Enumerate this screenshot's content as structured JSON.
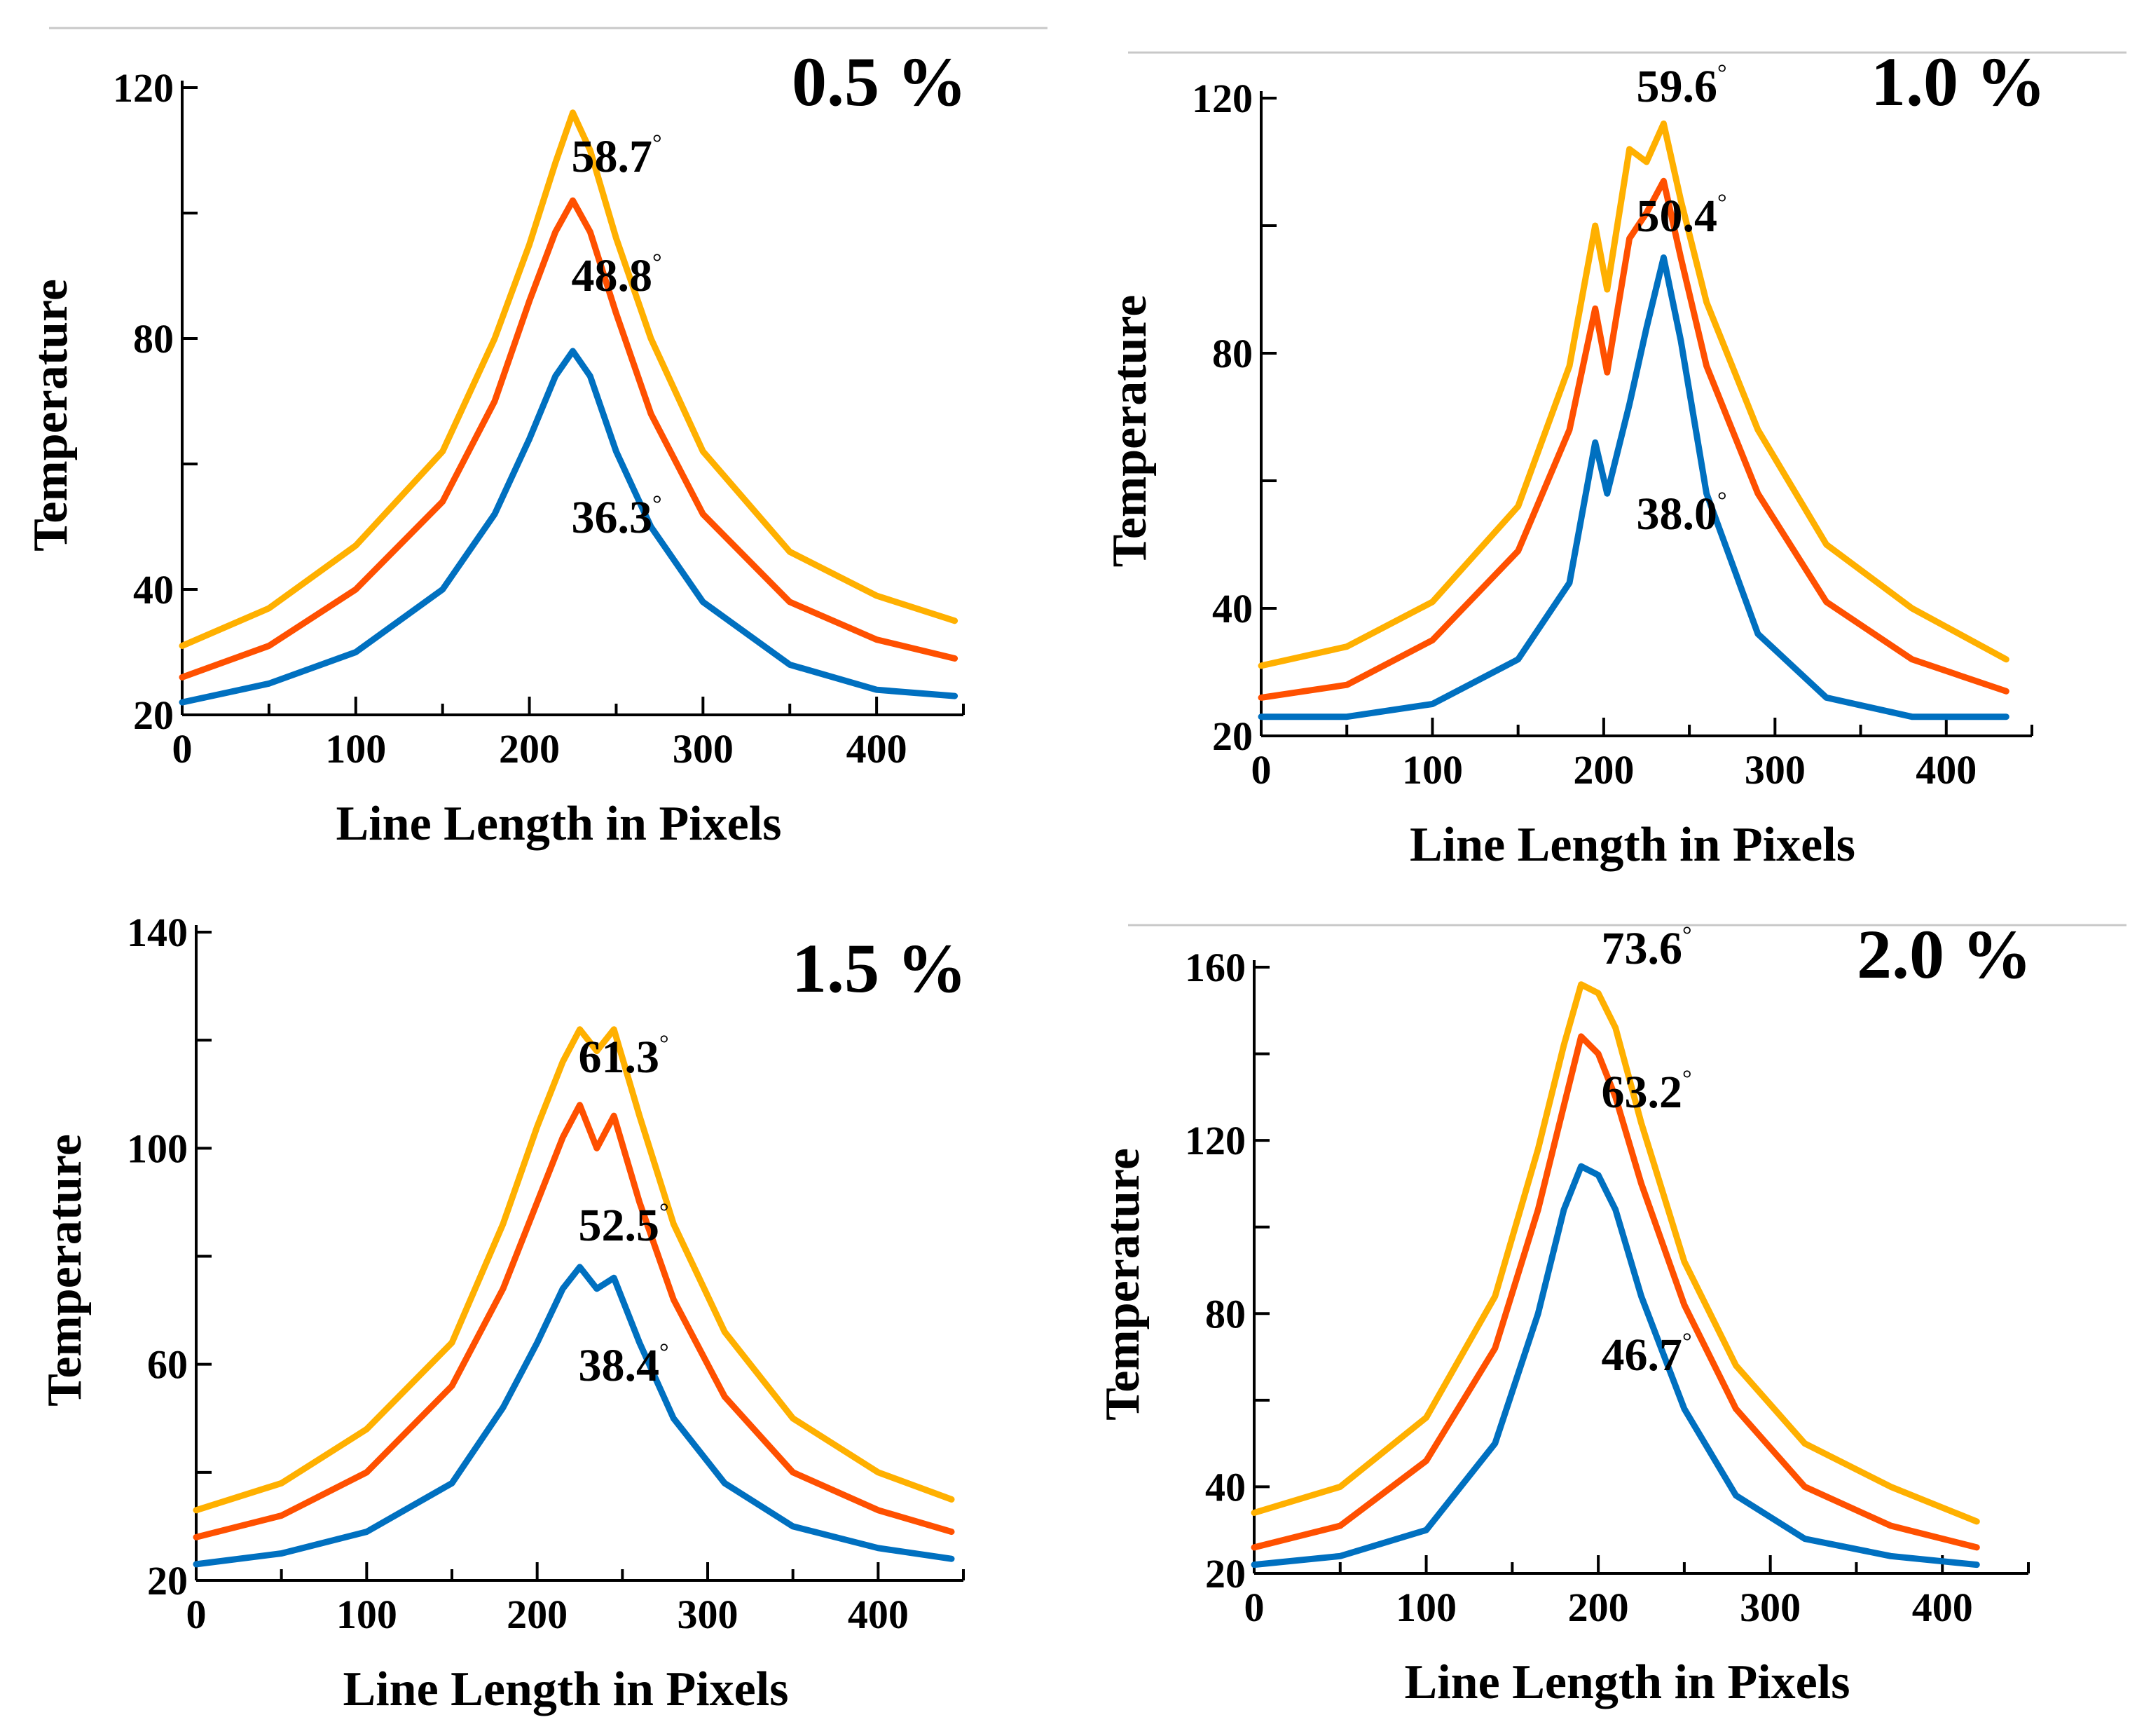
{
  "colors": {
    "upper": "#FFB000",
    "middle": "#FF5000",
    "lower": "#0070C0"
  },
  "degree_symbol": "°",
  "chart_data": [
    {
      "type": "line",
      "title": "0.5 %",
      "xlabel": "Line Length in Pixels",
      "ylabel": "Temperature",
      "xlim": [
        0,
        450
      ],
      "ylim": [
        20,
        120
      ],
      "xticks": [
        "0",
        "100",
        "200",
        "300",
        "400"
      ],
      "yticks": [
        "20",
        "40",
        "80",
        "120"
      ],
      "peak_labels": [
        "58.7",
        "48.8",
        "36.3"
      ],
      "series": [
        {
          "name": "upper",
          "x": [
            0,
            50,
            100,
            150,
            180,
            200,
            215,
            225,
            235,
            250,
            270,
            300,
            350,
            400,
            445
          ],
          "values": [
            31,
            37,
            47,
            62,
            80,
            95,
            108,
            116,
            110,
            96,
            80,
            62,
            46,
            39,
            35
          ]
        },
        {
          "name": "middle",
          "x": [
            0,
            50,
            100,
            150,
            180,
            200,
            215,
            225,
            235,
            250,
            270,
            300,
            350,
            400,
            445
          ],
          "values": [
            26,
            31,
            40,
            54,
            70,
            86,
            97,
            102,
            97,
            84,
            68,
            52,
            38,
            32,
            29
          ]
        },
        {
          "name": "lower",
          "x": [
            0,
            50,
            100,
            150,
            180,
            200,
            215,
            225,
            235,
            250,
            270,
            300,
            350,
            400,
            445
          ],
          "values": [
            22,
            25,
            30,
            40,
            52,
            64,
            74,
            78,
            74,
            62,
            50,
            38,
            28,
            24,
            23
          ]
        }
      ]
    },
    {
      "type": "line",
      "title": "1.0 %",
      "xlabel": "Line Length in Pixels",
      "ylabel": "Temperature",
      "xlim": [
        0,
        450
      ],
      "ylim": [
        20,
        120
      ],
      "xticks": [
        "0",
        "100",
        "200",
        "300",
        "400"
      ],
      "yticks": [
        "20",
        "40",
        "80",
        "120"
      ],
      "peak_labels": [
        "59.6",
        "50.4",
        "38.0"
      ],
      "series": [
        {
          "name": "upper",
          "x": [
            0,
            50,
            100,
            150,
            180,
            195,
            202,
            215,
            225,
            235,
            245,
            260,
            290,
            330,
            380,
            435
          ],
          "values": [
            31,
            34,
            41,
            56,
            78,
            100,
            90,
            112,
            110,
            116,
            104,
            88,
            68,
            50,
            40,
            32
          ]
        },
        {
          "name": "middle",
          "x": [
            0,
            50,
            100,
            150,
            180,
            195,
            202,
            215,
            225,
            235,
            245,
            260,
            290,
            330,
            380,
            435
          ],
          "values": [
            26,
            28,
            35,
            49,
            68,
            87,
            77,
            98,
            102,
            107,
            95,
            78,
            58,
            41,
            32,
            27
          ]
        },
        {
          "name": "lower",
          "x": [
            0,
            50,
            100,
            150,
            180,
            195,
            202,
            215,
            225,
            235,
            245,
            260,
            290,
            330,
            380,
            435
          ],
          "values": [
            23,
            23,
            25,
            32,
            44,
            66,
            58,
            72,
            84,
            95,
            82,
            58,
            36,
            26,
            23,
            23
          ]
        }
      ]
    },
    {
      "type": "line",
      "title": "1.5 %",
      "xlabel": "Line Length in Pixels",
      "ylabel": "Temperature",
      "xlim": [
        0,
        450
      ],
      "ylim": [
        20,
        140
      ],
      "xticks": [
        "0",
        "100",
        "200",
        "300",
        "400"
      ],
      "yticks": [
        "20",
        "60",
        "100",
        "140"
      ],
      "peak_labels": [
        "61.3",
        "52.5",
        "38.4"
      ],
      "series": [
        {
          "name": "upper",
          "x": [
            0,
            50,
            100,
            150,
            180,
            200,
            215,
            225,
            235,
            245,
            260,
            280,
            310,
            350,
            400,
            443
          ],
          "values": [
            33,
            38,
            48,
            64,
            86,
            104,
            116,
            122,
            118,
            122,
            106,
            86,
            66,
            50,
            40,
            35
          ]
        },
        {
          "name": "middle",
          "x": [
            0,
            50,
            100,
            150,
            180,
            200,
            215,
            225,
            235,
            245,
            260,
            280,
            310,
            350,
            400,
            443
          ],
          "values": [
            28,
            32,
            40,
            56,
            74,
            90,
            102,
            108,
            100,
            106,
            90,
            72,
            54,
            40,
            33,
            29
          ]
        },
        {
          "name": "lower",
          "x": [
            0,
            50,
            100,
            150,
            180,
            200,
            215,
            225,
            235,
            245,
            260,
            280,
            310,
            350,
            400,
            443
          ],
          "values": [
            23,
            25,
            29,
            38,
            52,
            64,
            74,
            78,
            74,
            76,
            64,
            50,
            38,
            30,
            26,
            24
          ]
        }
      ]
    },
    {
      "type": "line",
      "title": "2.0 %",
      "xlabel": "Line Length in Pixels",
      "ylabel": "Temperature",
      "xlim": [
        0,
        450
      ],
      "ylim": [
        20,
        160
      ],
      "xticks": [
        "0",
        "100",
        "200",
        "300",
        "400"
      ],
      "yticks": [
        "20",
        "40",
        "80",
        "120",
        "160"
      ],
      "peak_labels": [
        "73.6",
        "63.2",
        "46.7"
      ],
      "series": [
        {
          "name": "upper",
          "x": [
            0,
            50,
            100,
            140,
            165,
            180,
            190,
            200,
            210,
            225,
            250,
            280,
            320,
            370,
            420
          ],
          "values": [
            34,
            40,
            56,
            84,
            118,
            142,
            156,
            154,
            146,
            124,
            92,
            68,
            50,
            40,
            32
          ]
        },
        {
          "name": "middle",
          "x": [
            0,
            50,
            100,
            140,
            165,
            180,
            190,
            200,
            210,
            225,
            250,
            280,
            320,
            370,
            420
          ],
          "values": [
            26,
            31,
            46,
            72,
            104,
            128,
            144,
            140,
            130,
            110,
            82,
            58,
            40,
            31,
            26
          ]
        },
        {
          "name": "lower",
          "x": [
            0,
            50,
            100,
            140,
            165,
            180,
            190,
            200,
            210,
            225,
            250,
            280,
            320,
            370,
            420
          ],
          "values": [
            22,
            24,
            30,
            50,
            80,
            104,
            114,
            112,
            104,
            84,
            58,
            38,
            28,
            24,
            22
          ]
        }
      ]
    }
  ]
}
